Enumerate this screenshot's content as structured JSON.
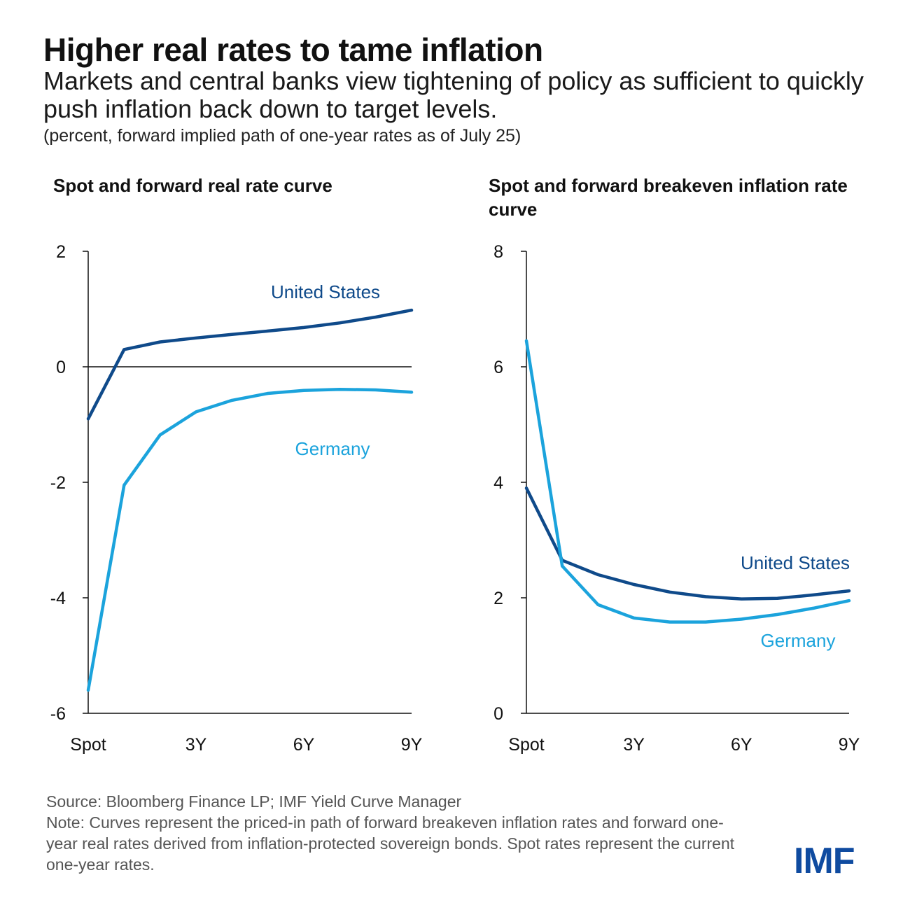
{
  "title": "Higher real rates to tame inflation",
  "subtitle": "Markets and central banks view tightening of policy as sufficient to quickly push inflation back down to target levels.",
  "units_note": "(percent, forward implied path of one-year rates as of July 25)",
  "source": "Source: Bloomberg Finance LP; IMF Yield Curve Manager",
  "note": "Note: Curves represent the priced-in path of forward breakeven inflation rates and forward one-year real rates derived from inflation-protected sovereign bonds. Spot rates represent the current one-year rates.",
  "logo": "IMF",
  "colors": {
    "united_states": "#0f4a8a",
    "germany": "#1ba3dc",
    "axis": "#111111"
  },
  "chart_data": [
    {
      "type": "line",
      "title": "Spot and forward real rate curve",
      "categories": [
        "Spot",
        "1Y",
        "2Y",
        "3Y",
        "4Y",
        "5Y",
        "6Y",
        "7Y",
        "8Y",
        "9Y"
      ],
      "tick_labels": [
        "Spot",
        "3Y",
        "6Y",
        "9Y"
      ],
      "ylim": [
        -6,
        2
      ],
      "yticks": [
        "2",
        "0",
        "-2",
        "-4",
        "-6"
      ],
      "zero_line": true,
      "series": [
        {
          "name": "United States",
          "values": [
            -0.9,
            0.3,
            0.43,
            0.5,
            0.56,
            0.62,
            0.68,
            0.76,
            0.86,
            0.98
          ]
        },
        {
          "name": "Germany",
          "values": [
            -5.6,
            -2.05,
            -1.18,
            -0.78,
            -0.58,
            -0.46,
            -0.41,
            -0.39,
            -0.4,
            -0.44
          ]
        }
      ]
    },
    {
      "type": "line",
      "title": "Spot and forward breakeven inflation rate curve",
      "categories": [
        "Spot",
        "1Y",
        "2Y",
        "3Y",
        "4Y",
        "5Y",
        "6Y",
        "7Y",
        "8Y",
        "9Y"
      ],
      "tick_labels": [
        "Spot",
        "3Y",
        "6Y",
        "9Y"
      ],
      "ylim": [
        0,
        8
      ],
      "yticks": [
        "8",
        "6",
        "4",
        "2",
        "0"
      ],
      "zero_line": false,
      "series": [
        {
          "name": "United States",
          "values": [
            3.9,
            2.65,
            2.4,
            2.23,
            2.1,
            2.02,
            1.98,
            1.99,
            2.05,
            2.12
          ]
        },
        {
          "name": "Germany",
          "values": [
            6.45,
            2.55,
            1.88,
            1.65,
            1.58,
            1.58,
            1.63,
            1.71,
            1.82,
            1.95
          ]
        }
      ]
    }
  ]
}
